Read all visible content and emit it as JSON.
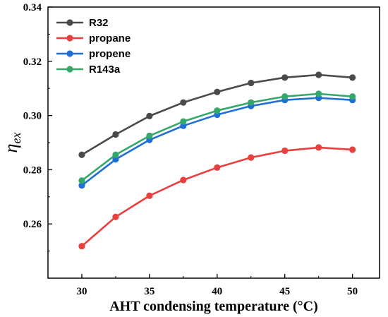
{
  "chart_data": {
    "type": "line",
    "title": "",
    "xlabel": "AHT condensing temperature (°C)",
    "ylabel_main": "η",
    "ylabel_sub": "ex",
    "xlim": [
      27.5,
      52.0
    ],
    "ylim": [
      0.24,
      0.34
    ],
    "xticks": [
      30,
      35,
      40,
      45,
      50
    ],
    "yticks": [
      0.26,
      0.28,
      0.3,
      0.32,
      0.34
    ],
    "ytick_labels": [
      "0.26",
      "0.28",
      "0.30",
      "0.32",
      "0.34"
    ],
    "x": [
      30,
      32.5,
      35,
      37.5,
      40,
      42.5,
      45,
      47.5,
      50
    ],
    "legend_position": "top-left",
    "grid": false,
    "series": [
      {
        "name": "R32",
        "color": "#4a4a4a",
        "values": [
          0.2855,
          0.293,
          0.2998,
          0.3048,
          0.3087,
          0.312,
          0.314,
          0.315,
          0.314
        ]
      },
      {
        "name": "propane",
        "color": "#e8403f",
        "values": [
          0.2518,
          0.2626,
          0.2704,
          0.2762,
          0.2808,
          0.2845,
          0.287,
          0.2882,
          0.2874
        ]
      },
      {
        "name": "propene",
        "color": "#1f6fd6",
        "values": [
          0.2742,
          0.2838,
          0.291,
          0.2962,
          0.3003,
          0.3035,
          0.3057,
          0.3065,
          0.3057
        ]
      },
      {
        "name": "R143a",
        "color": "#34a86a",
        "values": [
          0.276,
          0.2855,
          0.2925,
          0.2978,
          0.3018,
          0.3048,
          0.307,
          0.308,
          0.307
        ]
      }
    ]
  }
}
